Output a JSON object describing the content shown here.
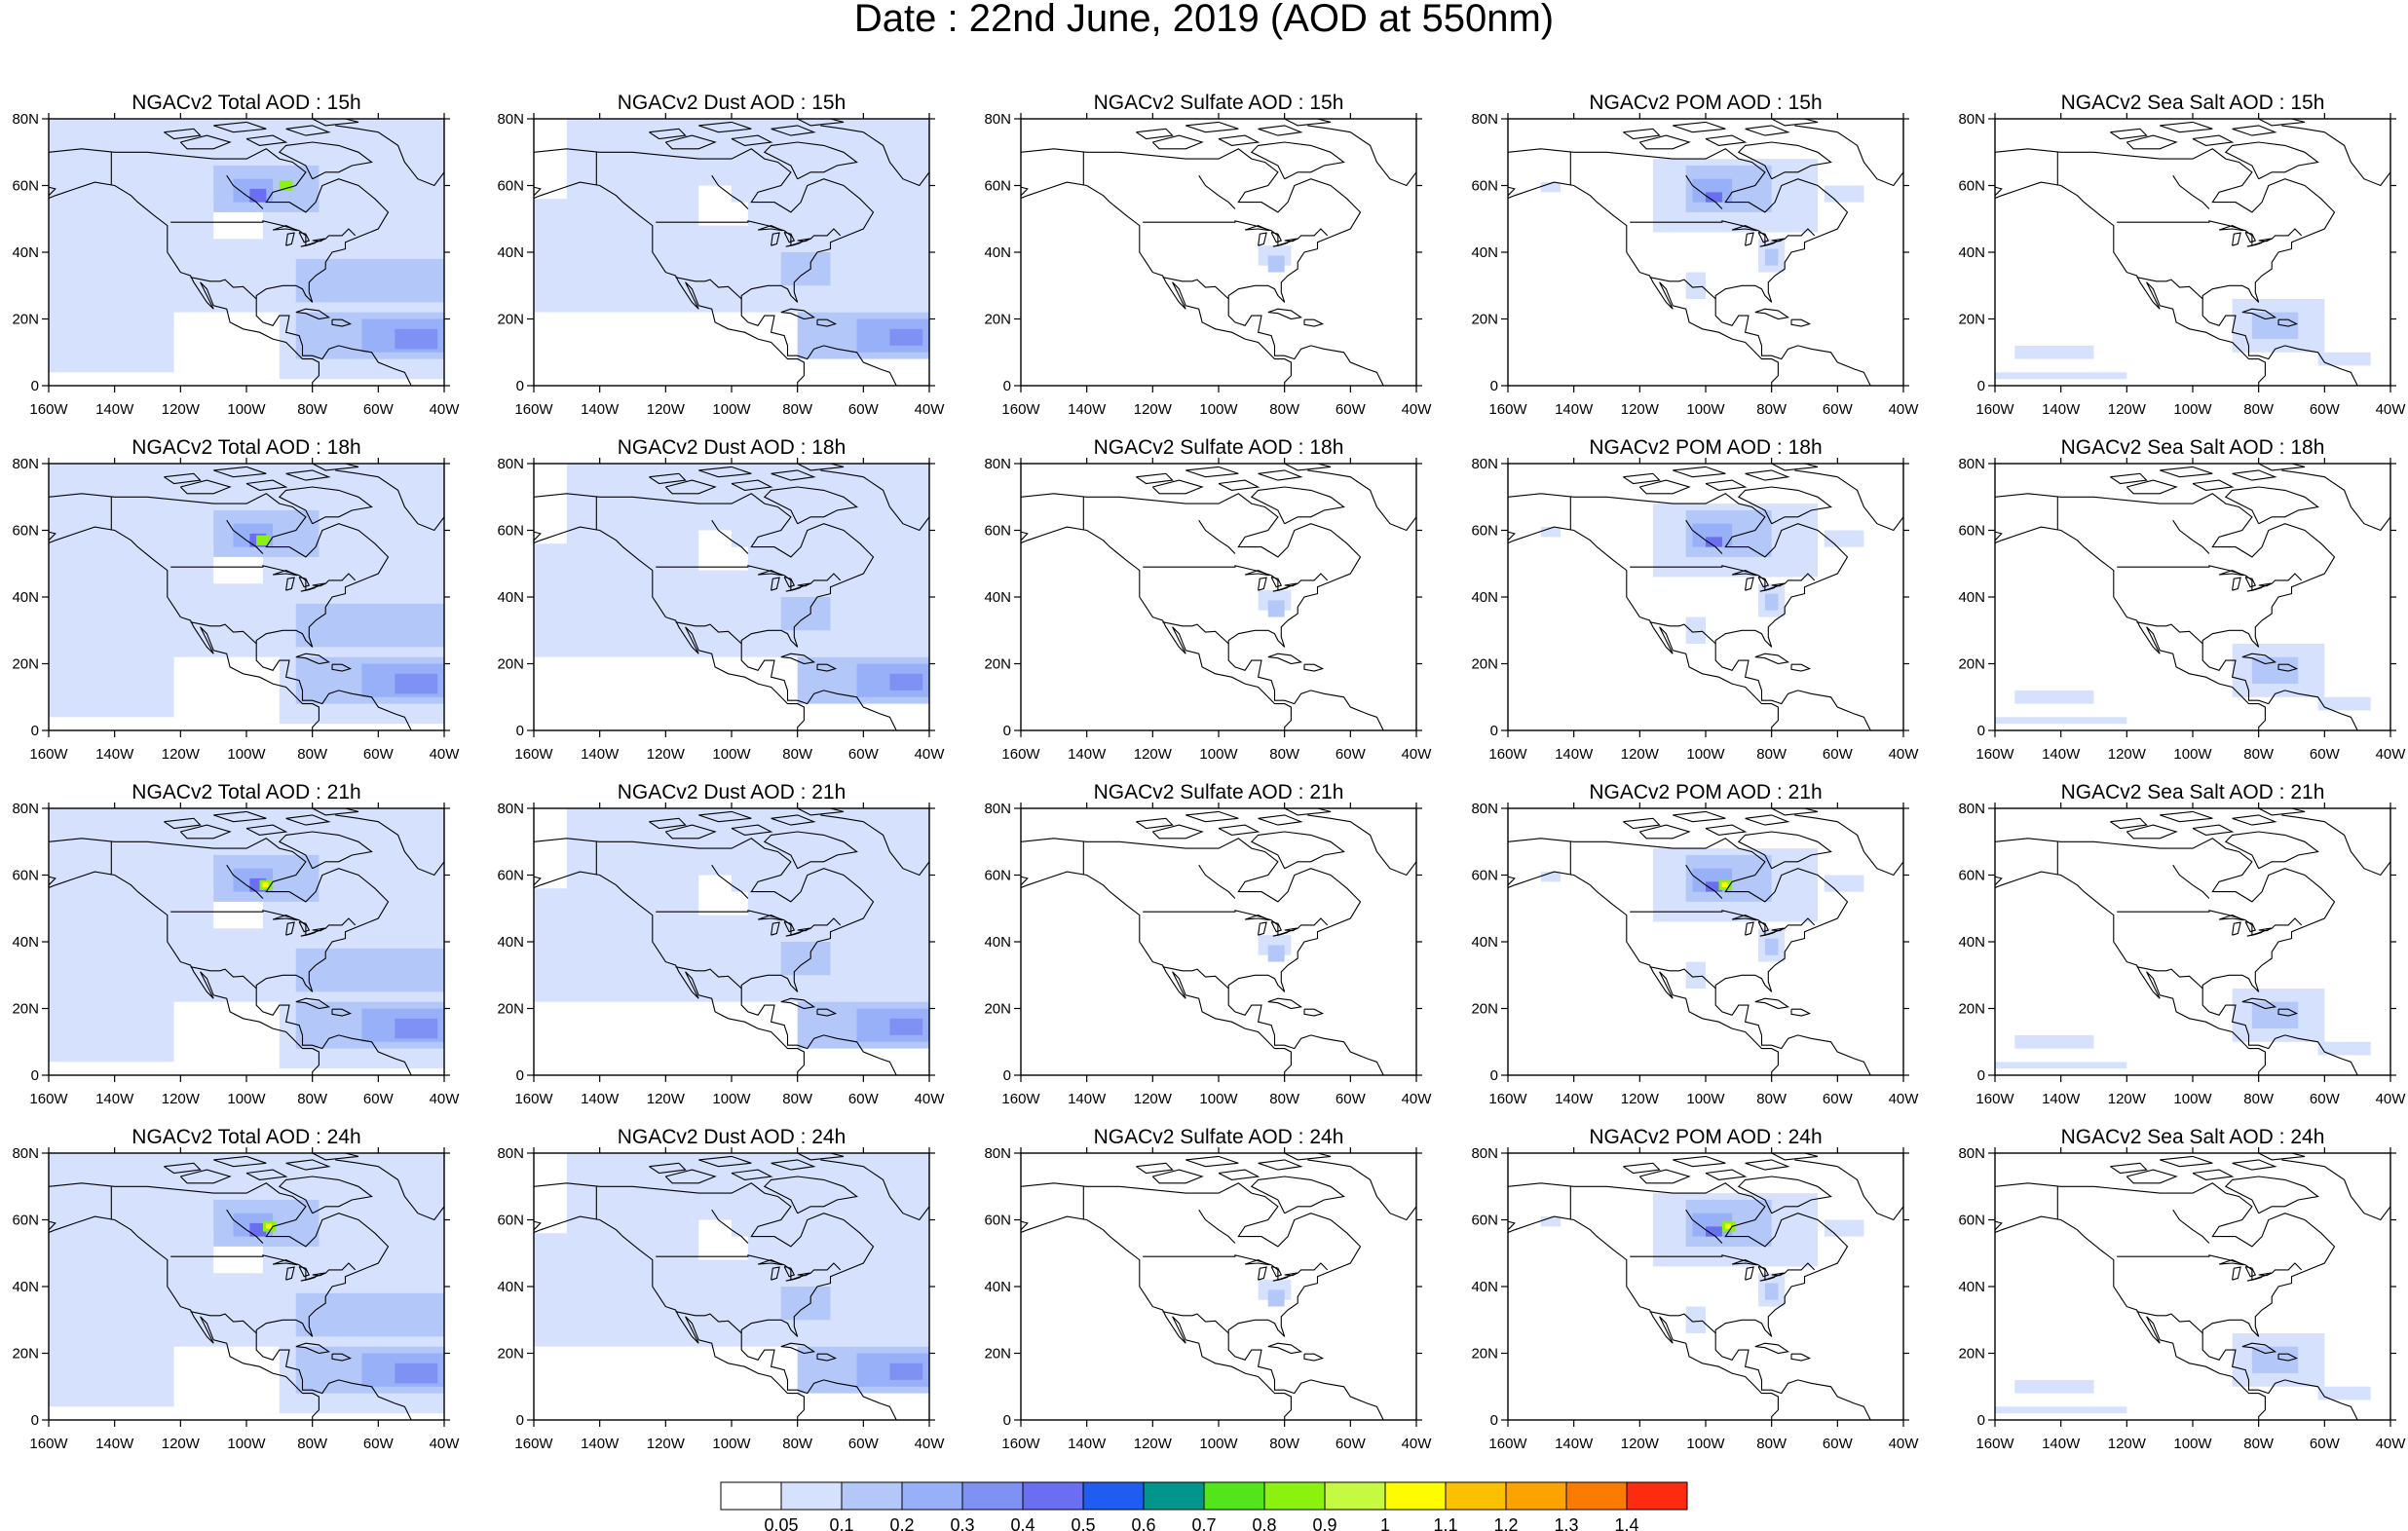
{
  "title": "Date : 22nd June, 2019 (AOD at 550nm)",
  "x_ticks": [
    "160W",
    "140W",
    "120W",
    "100W",
    "80W",
    "60W",
    "40W"
  ],
  "y_ticks": [
    "0",
    "20N",
    "40N",
    "60N",
    "80N"
  ],
  "colorbar": {
    "labels": [
      "0.05",
      "0.1",
      "0.2",
      "0.3",
      "0.4",
      "0.5",
      "0.6",
      "0.7",
      "0.8",
      "0.9",
      "1",
      "1.1",
      "1.2",
      "1.3",
      "1.4"
    ],
    "colors": [
      "#ffffff",
      "#d5e1fd",
      "#b3c8f9",
      "#97b0f7",
      "#7f92f3",
      "#6a6ef0",
      "#1f5cf0",
      "#00958d",
      "#52e61a",
      "#8bf10e",
      "#c6fa41",
      "#fffc00",
      "#fcc000",
      "#fca300",
      "#fb7a00",
      "#fd2c0e"
    ]
  },
  "panels": [
    {
      "title": "NGACv2 Total AOD : 15h",
      "species": "total",
      "hour": 15
    },
    {
      "title": "NGACv2 Dust AOD : 15h",
      "species": "dust",
      "hour": 15
    },
    {
      "title": "NGACv2 Sulfate AOD : 15h",
      "species": "sulfate",
      "hour": 15
    },
    {
      "title": "NGACv2 POM AOD : 15h",
      "species": "pom",
      "hour": 15
    },
    {
      "title": "NGACv2 Sea Salt AOD : 15h",
      "species": "seasalt",
      "hour": 15
    },
    {
      "title": "NGACv2 Total AOD : 18h",
      "species": "total",
      "hour": 18
    },
    {
      "title": "NGACv2 Dust AOD : 18h",
      "species": "dust",
      "hour": 18
    },
    {
      "title": "NGACv2 Sulfate AOD : 18h",
      "species": "sulfate",
      "hour": 18
    },
    {
      "title": "NGACv2 POM AOD : 18h",
      "species": "pom",
      "hour": 18
    },
    {
      "title": "NGACv2 Sea Salt AOD : 18h",
      "species": "seasalt",
      "hour": 18
    },
    {
      "title": "NGACv2 Total AOD : 21h",
      "species": "total",
      "hour": 21
    },
    {
      "title": "NGACv2 Dust AOD : 21h",
      "species": "dust",
      "hour": 21
    },
    {
      "title": "NGACv2 Sulfate AOD : 21h",
      "species": "sulfate",
      "hour": 21
    },
    {
      "title": "NGACv2 POM AOD : 21h",
      "species": "pom",
      "hour": 21
    },
    {
      "title": "NGACv2 Sea Salt AOD : 21h",
      "species": "seasalt",
      "hour": 21
    },
    {
      "title": "NGACv2 Total AOD : 24h",
      "species": "total",
      "hour": 24
    },
    {
      "title": "NGACv2 Dust AOD : 24h",
      "species": "dust",
      "hour": 24
    },
    {
      "title": "NGACv2 Sulfate AOD : 24h",
      "species": "sulfate",
      "hour": 24
    },
    {
      "title": "NGACv2 POM AOD : 24h",
      "species": "pom",
      "hour": 24
    },
    {
      "title": "NGACv2 Sea Salt  AOD : 24h",
      "species": "seasalt",
      "hour": 24
    }
  ]
}
